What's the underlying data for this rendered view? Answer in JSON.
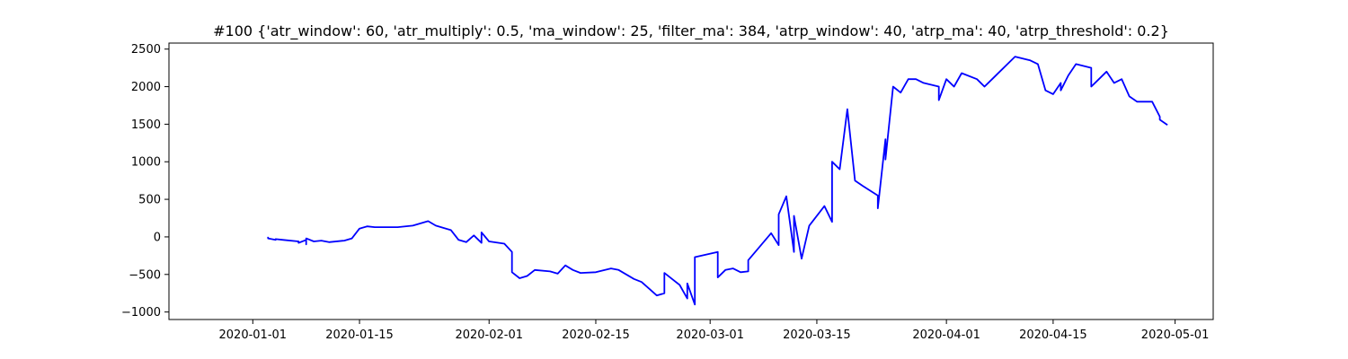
{
  "chart_data": {
    "type": "line",
    "title": "#100 {'atr_window': 60, 'atr_multiply': 0.5, 'ma_window': 25, 'filter_ma': 384, 'atrp_window': 40, 'atrp_ma': 40, 'atrp_threshold': 0.2}",
    "xlabel": "",
    "ylabel": "",
    "x_ticks": [
      "2020-01-01",
      "2020-01-15",
      "2020-02-01",
      "2020-02-15",
      "2020-03-01",
      "2020-03-15",
      "2020-04-01",
      "2020-04-15",
      "2020-05-01"
    ],
    "y_ticks": [
      -1000,
      -500,
      0,
      500,
      1000,
      1500,
      2000,
      2500
    ],
    "xlim": [
      "2019-12-21",
      "2020-05-06"
    ],
    "ylim": [
      -1100,
      2580
    ],
    "grid": false,
    "color": "#0000ff",
    "series": [
      {
        "x": [
          "2020-01-03",
          "2020-01-03",
          "2020-01-04",
          "2020-01-04",
          "2020-01-05",
          "2020-01-07",
          "2020-01-07",
          "2020-01-08",
          "2020-01-08",
          "2020-01-08",
          "2020-01-09",
          "2020-01-10",
          "2020-01-11",
          "2020-01-13",
          "2020-01-14",
          "2020-01-15",
          "2020-01-16",
          "2020-01-17",
          "2020-01-20",
          "2020-01-22",
          "2020-01-23",
          "2020-01-24",
          "2020-01-25",
          "2020-01-27",
          "2020-01-28",
          "2020-01-29",
          "2020-01-30",
          "2020-01-31",
          "2020-01-31",
          "2020-02-01",
          "2020-02-03",
          "2020-02-04",
          "2020-02-04",
          "2020-02-05",
          "2020-02-06",
          "2020-02-07",
          "2020-02-09",
          "2020-02-10",
          "2020-02-11",
          "2020-02-12",
          "2020-02-13",
          "2020-02-15",
          "2020-02-17",
          "2020-02-18",
          "2020-02-19",
          "2020-02-20",
          "2020-02-21",
          "2020-02-22",
          "2020-02-23",
          "2020-02-24",
          "2020-02-24",
          "2020-02-25",
          "2020-02-26",
          "2020-02-27",
          "2020-02-27",
          "2020-02-28",
          "2020-02-28",
          "2020-03-02",
          "2020-03-02",
          "2020-03-03",
          "2020-03-04",
          "2020-03-05",
          "2020-03-06",
          "2020-03-06",
          "2020-03-09",
          "2020-03-10",
          "2020-03-10",
          "2020-03-11",
          "2020-03-12",
          "2020-03-12",
          "2020-03-13",
          "2020-03-14",
          "2020-03-16",
          "2020-03-17",
          "2020-03-17",
          "2020-03-18",
          "2020-03-19",
          "2020-03-20",
          "2020-03-21",
          "2020-03-23",
          "2020-03-23",
          "2020-03-24",
          "2020-03-24",
          "2020-03-25",
          "2020-03-26",
          "2020-03-27",
          "2020-03-28",
          "2020-03-29",
          "2020-03-31",
          "2020-03-31",
          "2020-04-01",
          "2020-04-02",
          "2020-04-03",
          "2020-04-05",
          "2020-04-06",
          "2020-04-07",
          "2020-04-08",
          "2020-04-10",
          "2020-04-12",
          "2020-04-13",
          "2020-04-14",
          "2020-04-15",
          "2020-04-16",
          "2020-04-16",
          "2020-04-17",
          "2020-04-18",
          "2020-04-20",
          "2020-04-20",
          "2020-04-21",
          "2020-04-22",
          "2020-04-23",
          "2020-04-24",
          "2020-04-25",
          "2020-04-26",
          "2020-04-28",
          "2020-04-29",
          "2020-04-29",
          "2020-04-30"
        ],
        "y": [
          0,
          -20,
          -40,
          -30,
          -40,
          -60,
          -80,
          -40,
          -100,
          -20,
          -60,
          -50,
          -70,
          -50,
          -20,
          110,
          140,
          130,
          130,
          150,
          180,
          210,
          150,
          90,
          -40,
          -70,
          20,
          -80,
          60,
          -60,
          -90,
          -200,
          -470,
          -550,
          -520,
          -440,
          -460,
          -490,
          -380,
          -440,
          -480,
          -470,
          -420,
          -440,
          -500,
          -560,
          -600,
          -690,
          -780,
          -750,
          -480,
          -560,
          -640,
          -820,
          -620,
          -900,
          -270,
          -200,
          -540,
          -440,
          -420,
          -470,
          -460,
          -310,
          50,
          -110,
          300,
          540,
          -200,
          280,
          -290,
          150,
          410,
          200,
          1000,
          900,
          1700,
          750,
          680,
          550,
          380,
          1300,
          1030,
          2000,
          1920,
          2100,
          2100,
          2050,
          2000,
          1820,
          2100,
          2000,
          2180,
          2100,
          2000,
          2100,
          2200,
          2400,
          2350,
          2300,
          1950,
          1900,
          2050,
          1950,
          2150,
          2300,
          2250,
          2000,
          2100,
          2200,
          2050,
          2100,
          1870,
          1800,
          1800,
          1600,
          1560,
          1490
        ]
      }
    ]
  }
}
